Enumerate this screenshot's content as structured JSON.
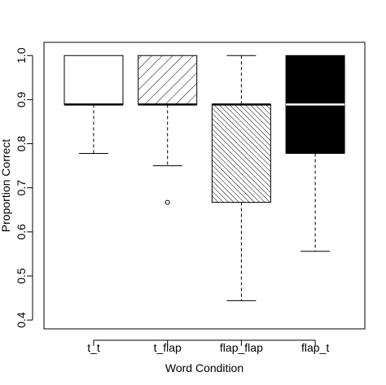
{
  "chart_data": {
    "type": "boxplot",
    "title": "",
    "xlabel": "Word Condition",
    "ylabel": "Proportion Correct",
    "ylim": [
      0.38,
      1.03
    ],
    "yticks": [
      0.4,
      0.5,
      0.6,
      0.7,
      0.8,
      0.9,
      1.0
    ],
    "ytick_labels": [
      "0.4",
      "0.5",
      "0.6",
      "0.7",
      "0.8",
      "0.9",
      "1.0"
    ],
    "grid": false,
    "categories": [
      "t_t",
      "t_flap",
      "flap_flap",
      "flap_t"
    ],
    "boxes": [
      {
        "category": "t_t",
        "whisker_low": 0.778,
        "q1": 0.889,
        "median": 0.889,
        "q3": 1.0,
        "whisker_high": 1.0,
        "outliers": [],
        "fill": "none",
        "median_color": "#000000"
      },
      {
        "category": "t_flap",
        "whisker_low": 0.75,
        "q1": 0.889,
        "median": 0.889,
        "q3": 1.0,
        "whisker_high": 1.0,
        "outliers": [
          0.667
        ],
        "fill": "hatch-sparse",
        "median_color": "#000000"
      },
      {
        "category": "flap_flap",
        "whisker_low": 0.444,
        "q1": 0.667,
        "median": 0.889,
        "q3": 0.889,
        "whisker_high": 1.0,
        "outliers": [],
        "fill": "hatch-dense",
        "median_color": "#000000"
      },
      {
        "category": "flap_t",
        "whisker_low": 0.556,
        "q1": 0.778,
        "median": 0.889,
        "q3": 1.0,
        "whisker_high": 1.0,
        "outliers": [],
        "fill": "solid-black",
        "median_color": "#ffffff"
      }
    ]
  }
}
